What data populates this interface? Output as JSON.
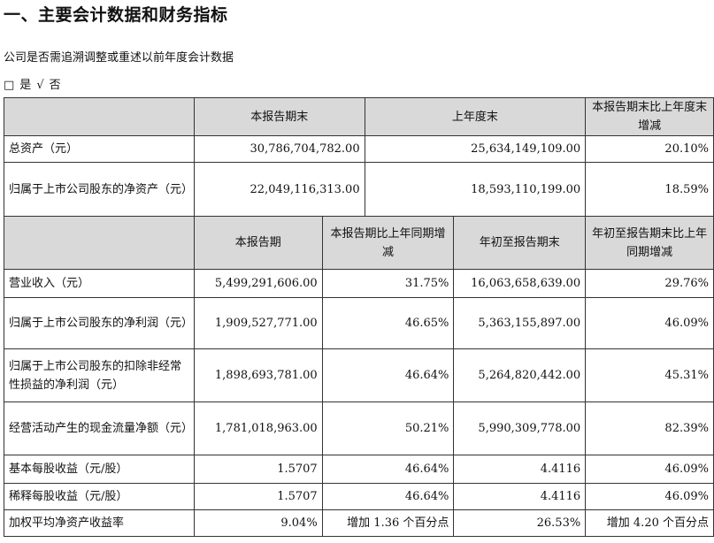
{
  "heading": "一、主要会计数据和财务指标",
  "question": "公司是否需追溯调整或重述以前年度会计数据",
  "answer": {
    "box": "□",
    "yes": "是",
    "check": "√",
    "no": "否"
  },
  "table1": {
    "headers": [
      "本报告期末",
      "上年度末",
      "本报告期末比上年度末增减"
    ],
    "rows": [
      {
        "label": "总资产（元）",
        "v1": "30,786,704,782.00",
        "v2": "25,634,149,109.00",
        "v3": "20.10%"
      },
      {
        "label": "归属于上市公司股东的净资产（元）",
        "v1": "22,049,116,313.00",
        "v2": "18,593,110,199.00",
        "v3": "18.59%"
      }
    ]
  },
  "table2": {
    "headers": [
      "本报告期",
      "本报告期比上年同期增减",
      "年初至报告期末",
      "年初至报告期末比上年同期增减"
    ],
    "rows": [
      {
        "label": "营业收入（元）",
        "v1": "5,499,291,606.00",
        "v2": "31.75%",
        "v3": "16,063,658,639.00",
        "v4": "29.76%"
      },
      {
        "label": "归属于上市公司股东的净利润（元）",
        "v1": "1,909,527,771.00",
        "v2": "46.65%",
        "v3": "5,363,155,897.00",
        "v4": "46.09%"
      },
      {
        "label": "归属于上市公司股东的扣除非经常性损益的净利润（元）",
        "v1": "1,898,693,781.00",
        "v2": "46.64%",
        "v3": "5,264,820,442.00",
        "v4": "45.31%"
      },
      {
        "label": "经营活动产生的现金流量净额（元）",
        "v1": "1,781,018,963.00",
        "v2": "50.21%",
        "v3": "5,990,309,778.00",
        "v4": "82.39%"
      },
      {
        "label": "基本每股收益（元/股）",
        "v1": "1.5707",
        "v2": "46.64%",
        "v3": "4.4116",
        "v4": "46.09%"
      },
      {
        "label": "稀释每股收益（元/股）",
        "v1": "1.5707",
        "v2": "46.64%",
        "v3": "4.4116",
        "v4": "46.09%"
      },
      {
        "label": "加权平均净资产收益率",
        "v1": "9.04%",
        "v2": "增加 1.36 个百分点",
        "v3": "26.53%",
        "v4": "增加 4.20 个百分点"
      }
    ]
  }
}
